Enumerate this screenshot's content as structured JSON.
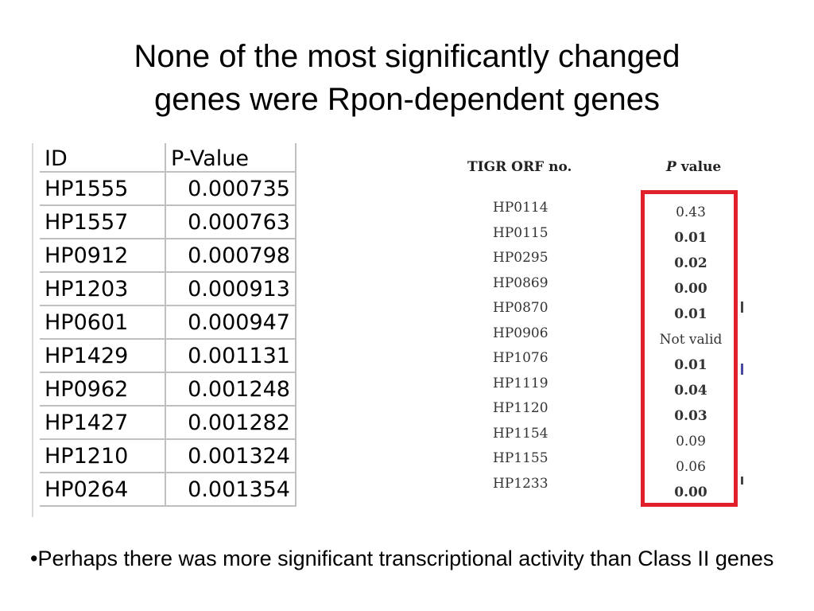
{
  "title": {
    "line1": "None of the most significantly changed",
    "line2": "genes were Rpon-dependent genes"
  },
  "left_table": {
    "headers": [
      "ID",
      "P-Value"
    ],
    "rows": [
      [
        "HP1555",
        "0.000735"
      ],
      [
        "HP1557",
        "0.000763"
      ],
      [
        "HP0912",
        "0.000798"
      ],
      [
        "HP1203",
        "0.000913"
      ],
      [
        "HP0601",
        "0.000947"
      ],
      [
        "HP1429",
        "0.001131"
      ],
      [
        "HP0962",
        "0.001248"
      ],
      [
        "HP1427",
        "0.001282"
      ],
      [
        "HP1210",
        "0.001324"
      ],
      [
        "HP0264",
        "0.001354"
      ]
    ]
  },
  "right_table": {
    "header_orf": "TIGR ORF no.",
    "header_p_italic": "P",
    "header_p_rest": " value",
    "orfs": [
      "HP0114",
      "HP0115",
      "HP0295",
      "HP0869",
      "HP0870",
      "HP0906",
      "HP1076",
      "HP1119",
      "HP1120",
      "HP1154",
      "HP1155",
      "HP1233"
    ],
    "pvalues": [
      "0.43",
      "0.01",
      "0.02",
      "0.00",
      "0.01",
      "Not valid",
      "0.01",
      "0.04",
      "0.03",
      "0.09",
      "0.06",
      "0.00"
    ],
    "highlight_color": "#e0202a"
  },
  "bullet": {
    "text": "•Perhaps there was more significant transcriptional activity than Class II genes"
  }
}
